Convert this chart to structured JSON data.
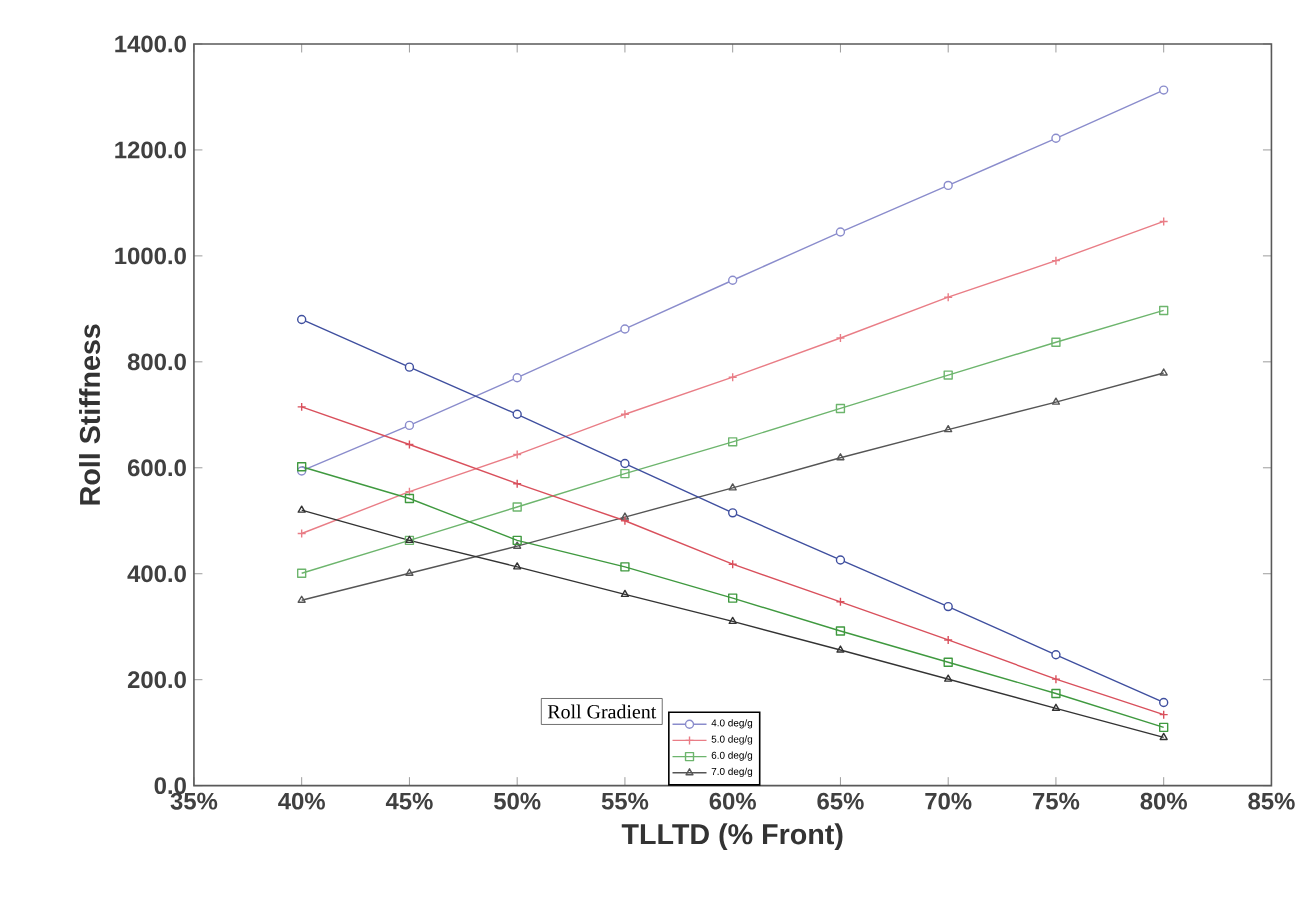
{
  "chart_data": {
    "type": "line",
    "xlabel": "TLLTD (% Front)",
    "ylabel": "Roll Stiffness",
    "legend_title": "Roll Gradient",
    "legend": "bottom",
    "grid": false,
    "x": [
      40,
      45,
      50,
      55,
      60,
      65,
      70,
      75,
      80
    ],
    "xlim": [
      35,
      85
    ],
    "xticks": [
      {
        "value": 35,
        "label": "35%"
      },
      {
        "value": 40,
        "label": "40%"
      },
      {
        "value": 45,
        "label": "45%"
      },
      {
        "value": 50,
        "label": "50%"
      },
      {
        "value": 55,
        "label": "55%"
      },
      {
        "value": 60,
        "label": "60%"
      },
      {
        "value": 65,
        "label": "65%"
      },
      {
        "value": 70,
        "label": "70%"
      },
      {
        "value": 75,
        "label": "75%"
      },
      {
        "value": 80,
        "label": "80%"
      },
      {
        "value": 85,
        "label": "85%"
      }
    ],
    "ylim": [
      0,
      1400
    ],
    "yticks": [
      {
        "value": 0,
        "label": "0.0"
      },
      {
        "value": 200,
        "label": "200.0"
      },
      {
        "value": 400,
        "label": "400.0"
      },
      {
        "value": 600,
        "label": "600.0"
      },
      {
        "value": 800,
        "label": "800.0"
      },
      {
        "value": 1000,
        "label": "1000.0"
      },
      {
        "value": 1200,
        "label": "1200.0"
      },
      {
        "value": 1400,
        "label": "1400.0"
      }
    ],
    "series": [
      {
        "name": "4.0 deg/g",
        "color": "#8a8ccc",
        "marker": "circle",
        "values": [
          594,
          680,
          770,
          862,
          954,
          1045,
          1133,
          1222,
          1313
        ]
      },
      {
        "name": "5.0 deg/g",
        "color": "#e97d86",
        "marker": "cross",
        "values": [
          476,
          555,
          625,
          701,
          771,
          845,
          922,
          991,
          1065
        ]
      },
      {
        "name": "6.0 deg/g",
        "color": "#6db56d",
        "marker": "square",
        "values": [
          401,
          463,
          526,
          589,
          649,
          712,
          775,
          837,
          897
        ]
      },
      {
        "name": "7.0 deg/g",
        "color": "#555555",
        "marker": "triangle",
        "values": [
          350,
          401,
          452,
          507,
          562,
          619,
          672,
          724,
          779
        ]
      },
      {
        "color": "#3f4f9f",
        "marker": "circle",
        "values": [
          880,
          790,
          701,
          608,
          515,
          426,
          338,
          247,
          157
        ]
      },
      {
        "color": "#d9505c",
        "marker": "cross",
        "values": [
          715,
          644,
          570,
          500,
          418,
          347,
          275,
          201,
          134
        ]
      },
      {
        "color": "#3f993f",
        "marker": "square",
        "values": [
          602,
          542,
          463,
          413,
          354,
          292,
          233,
          174,
          110
        ]
      },
      {
        "color": "#333333",
        "marker": "triangle",
        "values": [
          520,
          463,
          413,
          361,
          310,
          256,
          201,
          146,
          91
        ]
      }
    ]
  }
}
